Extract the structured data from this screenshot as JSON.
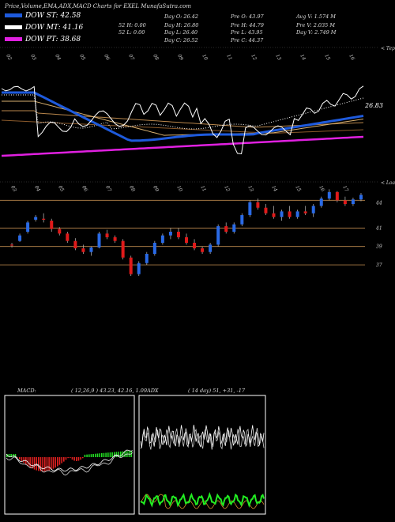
{
  "header": {
    "title": "Price,Volume,EMA,ADX,MACD Charts for EXEL  MunafaSutra.com",
    "stats": [
      [
        "Day O: 26.42",
        "Pre  O: 43.97",
        "Avg V: 1.574  M"
      ],
      [
        "Day H: 26.80",
        "Pre  H: 44.79",
        "Pre  V: 2.035 M"
      ],
      [
        "Day L: 26.40",
        "Pre  L: 43.95",
        "Day V: 2.749 M"
      ],
      [
        "Day C: 26.52",
        "Pre  C: 44.37",
        ""
      ]
    ],
    "week52": [
      "52  H: 0.00",
      "52  L: 0.00"
    ]
  },
  "legend": [
    {
      "label": "DOW ST: 42.58",
      "color": "#1e5adc"
    },
    {
      "label": "DOW MT: 41.16",
      "color": "#ffffff"
    },
    {
      "label": "DOW PT: 38.68",
      "color": "#e020e0"
    }
  ],
  "ema_chart": {
    "last_price_label": "26.83",
    "corner_label": "< Tepx",
    "date_ticks": [
      "02",
      "03",
      "04",
      "05",
      "06",
      "07",
      "08",
      "09",
      "10",
      "11",
      "12",
      "13",
      "14",
      "15",
      "16"
    ]
  },
  "candle_chart": {
    "corner_label": "< Loaan",
    "price_levels": [
      {
        "value": 44,
        "label": "44"
      },
      {
        "value": 41,
        "label": "41"
      },
      {
        "value": 39,
        "label": "39"
      },
      {
        "value": 37,
        "label": "37"
      }
    ],
    "date_ticks": [
      "03",
      "04",
      "05",
      "06",
      "07",
      "08",
      "09",
      "10",
      "11",
      "12",
      "13",
      "14",
      "15",
      "16",
      "17"
    ],
    "candles": [
      [
        39.2,
        39.4,
        38.9,
        39.1
      ],
      [
        39.6,
        40.4,
        39.5,
        40.2
      ],
      [
        40.6,
        41.8,
        40.4,
        41.6
      ],
      [
        41.9,
        42.4,
        41.7,
        42.2
      ],
      [
        42.0,
        42.6,
        41.6,
        41.9
      ],
      [
        41.8,
        42.0,
        40.6,
        40.9
      ],
      [
        40.9,
        41.1,
        40.2,
        40.4
      ],
      [
        40.4,
        40.6,
        39.4,
        39.6
      ],
      [
        39.6,
        39.9,
        38.6,
        38.8
      ],
      [
        38.8,
        39.2,
        38.2,
        38.4
      ],
      [
        38.4,
        39.0,
        38.0,
        38.9
      ],
      [
        38.9,
        40.6,
        38.8,
        40.4
      ],
      [
        40.4,
        40.8,
        39.8,
        40.0
      ],
      [
        40.0,
        40.2,
        39.4,
        39.6
      ],
      [
        39.6,
        39.8,
        37.6,
        37.8
      ],
      [
        37.8,
        38.0,
        35.8,
        36.0
      ],
      [
        36.0,
        37.4,
        35.8,
        37.2
      ],
      [
        37.2,
        38.4,
        37.0,
        38.2
      ],
      [
        38.2,
        39.6,
        38.0,
        39.4
      ],
      [
        39.4,
        40.4,
        39.2,
        40.2
      ],
      [
        40.2,
        41.0,
        39.8,
        40.6
      ],
      [
        40.6,
        41.0,
        39.8,
        40.0
      ],
      [
        40.0,
        40.4,
        39.2,
        39.4
      ],
      [
        39.4,
        39.8,
        38.6,
        38.8
      ],
      [
        38.8,
        39.0,
        38.2,
        38.4
      ],
      [
        38.4,
        39.4,
        38.2,
        39.2
      ],
      [
        39.2,
        41.4,
        39.0,
        41.2
      ],
      [
        41.2,
        41.6,
        40.4,
        40.6
      ],
      [
        40.6,
        41.6,
        40.4,
        41.4
      ],
      [
        41.4,
        42.6,
        41.2,
        42.4
      ],
      [
        42.4,
        44.0,
        42.2,
        43.8
      ],
      [
        43.8,
        44.2,
        43.0,
        43.2
      ],
      [
        43.2,
        43.6,
        42.4,
        42.6
      ],
      [
        42.6,
        43.4,
        42.0,
        42.2
      ],
      [
        42.2,
        43.0,
        41.8,
        42.8
      ],
      [
        42.8,
        43.4,
        42.0,
        42.2
      ],
      [
        42.2,
        43.0,
        42.0,
        42.8
      ],
      [
        42.8,
        43.4,
        42.4,
        42.6
      ],
      [
        42.6,
        43.6,
        42.2,
        43.4
      ],
      [
        43.4,
        44.4,
        43.2,
        44.2
      ],
      [
        44.2,
        45.2,
        44.0,
        44.9
      ],
      [
        44.9,
        45.0,
        43.8,
        44.0
      ],
      [
        44.0,
        44.4,
        43.4,
        43.6
      ],
      [
        43.6,
        44.3,
        43.4,
        44.1
      ],
      [
        44.1,
        44.8,
        43.9,
        44.6
      ]
    ]
  },
  "macd": {
    "label": "MACD:",
    "params": "( 12,26,9 ) 43.23, 42.16,  1.09"
  },
  "adx": {
    "label": "ADX",
    "params": "( 14  day) 51,  +31,  -17"
  }
}
